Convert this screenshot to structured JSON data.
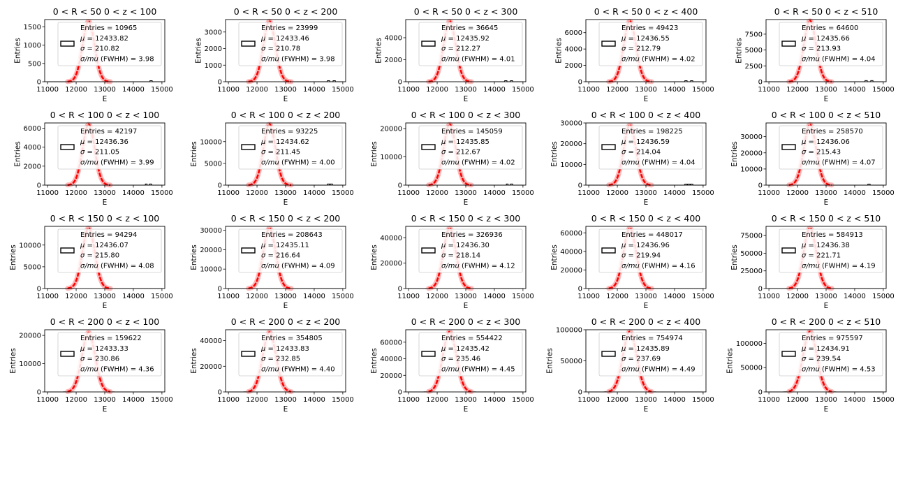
{
  "chart_data": [
    {
      "type": "histogram",
      "title": "0 < R < 50 0 < z < 100",
      "xlabel": "E",
      "ylabel": "Entries",
      "xlim": [
        10900,
        15100
      ],
      "ylim": [
        0,
        1700
      ],
      "x_ticks": [
        11000,
        12000,
        13000,
        14000,
        15000
      ],
      "y_ticks": [
        0,
        500,
        1000,
        1500
      ],
      "peak": 1650,
      "mean": 12433.82,
      "sigma": 210.82,
      "legend": [
        "Entries = 10965",
        "$\\mu$ = 12433.82",
        "$\\sigma$ =  210.82",
        "$\\sigma$/mu (FWHM)  =     3.98"
      ],
      "tail_bumps": [
        14620
      ]
    },
    {
      "type": "histogram",
      "title": "0 < R < 50 0 < z < 200",
      "xlabel": "E",
      "ylabel": "Entries",
      "xlim": [
        10900,
        15100
      ],
      "ylim": [
        0,
        3750
      ],
      "x_ticks": [
        11000,
        12000,
        13000,
        14000,
        15000
      ],
      "y_ticks": [
        0,
        1000,
        2000,
        3000
      ],
      "peak": 3650,
      "mean": 12433.46,
      "sigma": 210.78,
      "legend": [
        "Entries = 23999",
        "$\\mu$ = 12433.46",
        "$\\sigma$ =  210.78",
        "$\\sigma$/mu (FWHM)  =     3.98"
      ],
      "tail_bumps": [
        14500,
        14700
      ]
    },
    {
      "type": "histogram",
      "title": "0 < R < 50 0 < z < 300",
      "xlabel": "E",
      "ylabel": "Entries",
      "xlim": [
        10900,
        15100
      ],
      "ylim": [
        0,
        5650
      ],
      "x_ticks": [
        11000,
        12000,
        13000,
        14000,
        15000
      ],
      "y_ticks": [
        0,
        2000,
        4000
      ],
      "peak": 5500,
      "mean": 12435.92,
      "sigma": 212.27,
      "legend": [
        "Entries = 36645",
        "$\\mu$ = 12435.92",
        "$\\sigma$ =  212.27",
        "$\\sigma$/mu (FWHM)  =     4.01"
      ],
      "tail_bumps": [
        14400,
        14600
      ]
    },
    {
      "type": "histogram",
      "title": "0 < R < 50 0 < z < 400",
      "xlabel": "E",
      "ylabel": "Entries",
      "xlim": [
        10900,
        15100
      ],
      "ylim": [
        0,
        7600
      ],
      "x_ticks": [
        11000,
        12000,
        13000,
        14000,
        15000
      ],
      "y_ticks": [
        0,
        2000,
        4000,
        6000
      ],
      "peak": 7400,
      "mean": 12436.55,
      "sigma": 212.79,
      "legend": [
        "Entries = 49423",
        "$\\mu$ = 12436.55",
        "$\\sigma$ =  212.79",
        "$\\sigma$/mu (FWHM)  =     4.02"
      ],
      "tail_bumps": [
        14400,
        14600
      ]
    },
    {
      "type": "histogram",
      "title": "0 < R < 50 0 < z < 510",
      "xlabel": "E",
      "ylabel": "Entries",
      "xlim": [
        10900,
        15100
      ],
      "ylim": [
        0,
        9800
      ],
      "x_ticks": [
        11000,
        12000,
        13000,
        14000,
        15000
      ],
      "y_ticks": [
        0,
        2500,
        5000,
        7500
      ],
      "peak": 9600,
      "mean": 12435.66,
      "sigma": 213.93,
      "legend": [
        "Entries = 64600",
        "$\\mu$ = 12435.66",
        "$\\sigma$ =  213.93",
        "$\\sigma$/mu (FWHM)  =     4.04"
      ],
      "tail_bumps": [
        14400,
        14600
      ]
    },
    {
      "type": "histogram",
      "title": "0 < R < 100 0 < z < 100",
      "xlabel": "E",
      "ylabel": "Entries",
      "xlim": [
        10900,
        15100
      ],
      "ylim": [
        0,
        6550
      ],
      "x_ticks": [
        11000,
        12000,
        13000,
        14000,
        15000
      ],
      "y_ticks": [
        0,
        2000,
        4000,
        6000
      ],
      "peak": 6400,
      "mean": 12436.36,
      "sigma": 211.05,
      "legend": [
        "Entries = 42197",
        "$\\mu$ = 12436.36",
        "$\\sigma$ =  211.05",
        "$\\sigma$/mu (FWHM)  =     3.99"
      ],
      "tail_bumps": [
        14450,
        14600
      ]
    },
    {
      "type": "histogram",
      "title": "0 < R < 100 0 < z < 200",
      "xlabel": "E",
      "ylabel": "Entries",
      "xlim": [
        10900,
        15100
      ],
      "ylim": [
        0,
        14300
      ],
      "x_ticks": [
        11000,
        12000,
        13000,
        14000,
        15000
      ],
      "y_ticks": [
        0,
        5000,
        10000
      ],
      "peak": 14000,
      "mean": 12434.62,
      "sigma": 211.45,
      "legend": [
        "Entries = 93225",
        "$\\mu$ = 12434.62",
        "$\\sigma$ =  211.45",
        "$\\sigma$/mu (FWHM)  =     4.00"
      ],
      "tail_bumps": [
        14500,
        14600
      ]
    },
    {
      "type": "histogram",
      "title": "0 < R < 100 0 < z < 300",
      "xlabel": "E",
      "ylabel": "Entries",
      "xlim": [
        10900,
        15100
      ],
      "ylim": [
        0,
        22000
      ],
      "x_ticks": [
        11000,
        12000,
        13000,
        14000,
        15000
      ],
      "y_ticks": [
        0,
        10000,
        20000
      ],
      "peak": 21500,
      "mean": 12435.85,
      "sigma": 212.67,
      "legend": [
        "Entries = 145059",
        "$\\mu$ = 12435.85",
        "$\\sigma$ =  212.67",
        "$\\sigma$/mu (FWHM)  =     4.02"
      ],
      "tail_bumps": [
        14450,
        14600
      ]
    },
    {
      "type": "histogram",
      "title": "0 < R < 100 0 < z < 400",
      "xlabel": "E",
      "ylabel": "Entries",
      "xlim": [
        10900,
        15100
      ],
      "ylim": [
        0,
        30000
      ],
      "x_ticks": [
        11000,
        12000,
        13000,
        14000,
        15000
      ],
      "y_ticks": [
        0,
        10000,
        20000,
        30000
      ],
      "peak": 29000,
      "mean": 12436.59,
      "sigma": 214.04,
      "legend": [
        "Entries = 198225",
        "$\\mu$ = 12436.59",
        "$\\sigma$ =  214.04",
        "$\\sigma$/mu (FWHM)  =     4.04"
      ],
      "tail_bumps": [
        14400,
        14500,
        14600
      ]
    },
    {
      "type": "histogram",
      "title": "0 < R < 100 0 < z < 510",
      "xlabel": "E",
      "ylabel": "Entries",
      "xlim": [
        10900,
        15100
      ],
      "ylim": [
        0,
        38500
      ],
      "x_ticks": [
        11000,
        12000,
        13000,
        14000,
        15000
      ],
      "y_ticks": [
        0,
        10000,
        20000,
        30000
      ],
      "peak": 37500,
      "mean": 12436.06,
      "sigma": 215.43,
      "legend": [
        "Entries = 258570",
        "$\\mu$ = 12436.06",
        "$\\sigma$ =  215.43",
        "$\\sigma$/mu (FWHM)  =     4.07"
      ],
      "tail_bumps": [
        14500
      ]
    },
    {
      "type": "histogram",
      "title": "0 < R < 150 0 < z < 100",
      "xlabel": "E",
      "ylabel": "Entries",
      "xlim": [
        10900,
        15100
      ],
      "ylim": [
        0,
        14300
      ],
      "x_ticks": [
        11000,
        12000,
        13000,
        14000,
        15000
      ],
      "y_ticks": [
        0,
        5000,
        10000
      ],
      "peak": 13900,
      "mean": 12436.07,
      "sigma": 215.8,
      "legend": [
        "Entries = 94294",
        "$\\mu$ = 12436.07",
        "$\\sigma$ =  215.80",
        "$\\sigma$/mu (FWHM)  =     4.08"
      ],
      "tail_bumps": []
    },
    {
      "type": "histogram",
      "title": "0 < R < 150 0 < z < 200",
      "xlabel": "E",
      "ylabel": "Entries",
      "xlim": [
        10900,
        15100
      ],
      "ylim": [
        0,
        32000
      ],
      "x_ticks": [
        11000,
        12000,
        13000,
        14000,
        15000
      ],
      "y_ticks": [
        0,
        10000,
        20000,
        30000
      ],
      "peak": 31000,
      "mean": 12435.11,
      "sigma": 216.64,
      "legend": [
        "Entries = 208643",
        "$\\mu$ = 12435.11",
        "$\\sigma$ =  216.64",
        "$\\sigma$/mu (FWHM)  =     4.09"
      ],
      "tail_bumps": []
    },
    {
      "type": "histogram",
      "title": "0 < R < 150 0 < z < 300",
      "xlabel": "E",
      "ylabel": "Entries",
      "xlim": [
        10900,
        15100
      ],
      "ylim": [
        0,
        49000
      ],
      "x_ticks": [
        11000,
        12000,
        13000,
        14000,
        15000
      ],
      "y_ticks": [
        0,
        20000,
        40000
      ],
      "peak": 47500,
      "mean": 12436.3,
      "sigma": 218.14,
      "legend": [
        "Entries = 326936",
        "$\\mu$ = 12436.30",
        "$\\sigma$ =  218.14",
        "$\\sigma$/mu (FWHM)  =     4.12"
      ],
      "tail_bumps": []
    },
    {
      "type": "histogram",
      "title": "0 < R < 150 0 < z < 400",
      "xlabel": "E",
      "ylabel": "Entries",
      "xlim": [
        10900,
        15100
      ],
      "ylim": [
        0,
        67000
      ],
      "x_ticks": [
        11000,
        12000,
        13000,
        14000,
        15000
      ],
      "y_ticks": [
        0,
        20000,
        40000,
        60000
      ],
      "peak": 65000,
      "mean": 12436.96,
      "sigma": 219.94,
      "legend": [
        "Entries = 448017",
        "$\\mu$ = 12436.96",
        "$\\sigma$ =  219.94",
        "$\\sigma$/mu (FWHM)  =     4.16"
      ],
      "tail_bumps": []
    },
    {
      "type": "histogram",
      "title": "0 < R < 150 0 < z < 510",
      "xlabel": "E",
      "ylabel": "Entries",
      "xlim": [
        10900,
        15100
      ],
      "ylim": [
        0,
        88000
      ],
      "x_ticks": [
        11000,
        12000,
        13000,
        14000,
        15000
      ],
      "y_ticks": [
        0,
        25000,
        50000,
        75000
      ],
      "peak": 85500,
      "mean": 12436.38,
      "sigma": 221.71,
      "legend": [
        "Entries = 584913",
        "$\\mu$ = 12436.38",
        "$\\sigma$ =  221.71",
        "$\\sigma$/mu (FWHM)  =     4.19"
      ],
      "tail_bumps": []
    },
    {
      "type": "histogram",
      "title": "0 < R < 200 0 < z < 100",
      "xlabel": "E",
      "ylabel": "Entries",
      "xlim": [
        10900,
        15100
      ],
      "ylim": [
        0,
        22000
      ],
      "x_ticks": [
        11000,
        12000,
        13000,
        14000,
        15000
      ],
      "y_ticks": [
        0,
        10000,
        20000
      ],
      "peak": 21000,
      "mean": 12433.33,
      "sigma": 230.86,
      "legend": [
        "Entries = 159622",
        "$\\mu$ = 12433.33",
        "$\\sigma$ =  230.86",
        "$\\sigma$/mu (FWHM)  =     4.36"
      ],
      "tail_bumps": []
    },
    {
      "type": "histogram",
      "title": "0 < R < 200 0 < z < 200",
      "xlabel": "E",
      "ylabel": "Entries",
      "xlim": [
        10900,
        15100
      ],
      "ylim": [
        0,
        48500
      ],
      "x_ticks": [
        11000,
        12000,
        13000,
        14000,
        15000
      ],
      "y_ticks": [
        0,
        20000,
        40000
      ],
      "peak": 46500,
      "mean": 12433.83,
      "sigma": 232.85,
      "legend": [
        "Entries = 354805",
        "$\\mu$ = 12433.83",
        "$\\sigma$ =  232.85",
        "$\\sigma$/mu (FWHM)  =     4.40"
      ],
      "tail_bumps": []
    },
    {
      "type": "histogram",
      "title": "0 < R < 200 0 < z < 300",
      "xlabel": "E",
      "ylabel": "Entries",
      "xlim": [
        10900,
        15100
      ],
      "ylim": [
        0,
        75000
      ],
      "x_ticks": [
        11000,
        12000,
        13000,
        14000,
        15000
      ],
      "y_ticks": [
        0,
        20000,
        40000,
        60000
      ],
      "peak": 72500,
      "mean": 12435.42,
      "sigma": 235.46,
      "legend": [
        "Entries = 554422",
        "$\\mu$ = 12435.42",
        "$\\sigma$ =  235.46",
        "$\\sigma$/mu (FWHM)  =     4.45"
      ],
      "tail_bumps": []
    },
    {
      "type": "histogram",
      "title": "0 < R < 200 0 < z < 400",
      "xlabel": "E",
      "ylabel": "Entries",
      "xlim": [
        10900,
        15100
      ],
      "ylim": [
        0,
        100000
      ],
      "x_ticks": [
        11000,
        12000,
        13000,
        14000,
        15000
      ],
      "y_ticks": [
        0,
        50000,
        100000
      ],
      "peak": 97000,
      "mean": 12435.89,
      "sigma": 237.69,
      "legend": [
        "Entries = 754974",
        "$\\mu$ = 12435.89",
        "$\\sigma$ =  237.69",
        "$\\sigma$/mu (FWHM)  =     4.49"
      ],
      "tail_bumps": []
    },
    {
      "type": "histogram",
      "title": "0 < R < 200 0 < z < 510",
      "xlabel": "E",
      "ylabel": "Entries",
      "xlim": [
        10900,
        15100
      ],
      "ylim": [
        0,
        128000
      ],
      "x_ticks": [
        11000,
        12000,
        13000,
        14000,
        15000
      ],
      "y_ticks": [
        0,
        50000,
        100000
      ],
      "peak": 124000,
      "mean": 12434.91,
      "sigma": 239.54,
      "legend": [
        "Entries = 975597",
        "$\\mu$ = 12434.91",
        "$\\sigma$ =  239.54",
        "$\\sigma$/mu (FWHM)  =     4.53"
      ],
      "tail_bumps": []
    }
  ],
  "colors": {
    "fit_curve": "#ff0000",
    "fit_glow": "#ffb0b0",
    "histogram": "#000000",
    "axes": "#000000"
  },
  "grid": false,
  "legend_placement": "upper-right",
  "rows": 4,
  "cols": 5
}
